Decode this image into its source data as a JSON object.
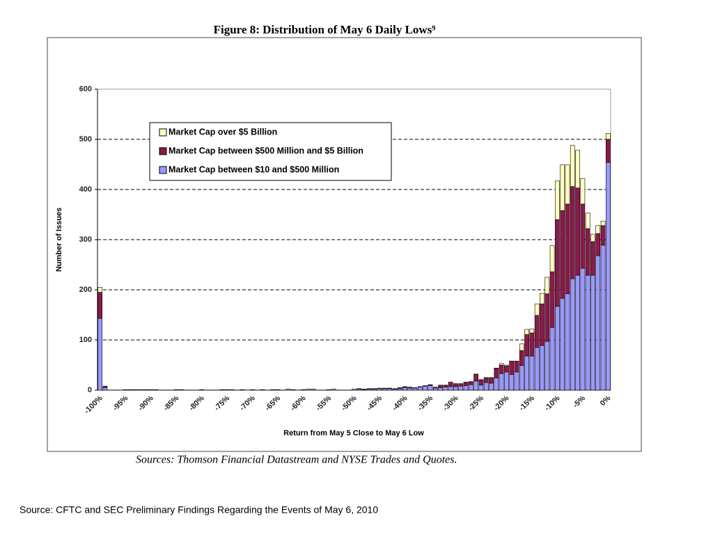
{
  "chart_data": {
    "type": "stacked_bar",
    "title": "Figure 8:  Distribution of May 6 Daily Lows⁹",
    "x_label": "Return from May 5 Close to May 6 Low",
    "y_label": "Number of Issues",
    "sources": "Sources: Thomson Financial Datastream and NYSE Trades and Quotes.",
    "categories": [
      "-100%",
      null,
      null,
      null,
      null,
      "-95%",
      null,
      null,
      null,
      null,
      "-90%",
      null,
      null,
      null,
      null,
      "-85%",
      null,
      null,
      null,
      null,
      "-80%",
      null,
      null,
      null,
      null,
      "-75%",
      null,
      null,
      null,
      null,
      "-70%",
      null,
      null,
      null,
      null,
      "-65%",
      null,
      null,
      null,
      null,
      "-60%",
      null,
      null,
      null,
      null,
      "-55%",
      null,
      null,
      null,
      null,
      "-50%",
      null,
      null,
      null,
      null,
      "-45%",
      null,
      null,
      null,
      null,
      "-40%",
      null,
      null,
      null,
      null,
      "-35%",
      null,
      null,
      null,
      null,
      "-30%",
      null,
      null,
      null,
      null,
      "-25%",
      null,
      null,
      null,
      null,
      "-20%",
      null,
      null,
      null,
      null,
      "-15%",
      null,
      null,
      null,
      null,
      "-10%",
      null,
      null,
      null,
      null,
      "-5%",
      null,
      null,
      null,
      null,
      "0%"
    ],
    "series": [
      {
        "name": "Market Cap between $10 and $500 Million",
        "color": "#9999ff",
        "values": [
          143,
          5,
          0,
          0,
          0,
          1,
          1,
          1,
          1,
          1,
          1,
          1,
          0,
          0,
          0,
          1,
          1,
          0,
          0,
          0,
          1,
          0,
          0,
          0,
          1,
          1,
          1,
          0,
          1,
          0,
          1,
          0,
          1,
          0,
          1,
          1,
          0,
          2,
          1,
          0,
          1,
          2,
          2,
          0,
          0,
          1,
          2,
          0,
          0,
          0,
          2,
          2,
          1,
          2,
          2,
          3,
          3,
          3,
          2,
          3,
          5,
          4,
          4,
          6,
          8,
          9,
          4,
          5,
          6,
          7,
          7,
          8,
          9,
          11,
          18,
          10,
          15,
          14,
          24,
          33,
          36,
          31,
          36,
          49,
          68,
          68,
          85,
          89,
          97,
          125,
          167,
          183,
          192,
          222,
          229,
          243,
          229,
          229,
          268,
          289,
          454
        ]
      },
      {
        "name": "Market Cap between $500 Million and $5 Billion",
        "color": "#8b1a4a",
        "values": [
          52,
          3,
          0,
          0,
          0,
          0,
          0,
          0,
          0,
          0,
          0,
          0,
          0,
          0,
          0,
          0,
          0,
          0,
          0,
          0,
          0,
          0,
          0,
          0,
          0,
          0,
          0,
          0,
          0,
          0,
          0,
          0,
          0,
          0,
          0,
          0,
          0,
          0,
          0,
          0,
          0,
          0,
          0,
          0,
          0,
          0,
          0,
          0,
          0,
          0,
          0,
          1,
          1,
          1,
          1,
          1,
          1,
          1,
          1,
          2,
          2,
          2,
          1,
          1,
          1,
          2,
          2,
          5,
          4,
          9,
          6,
          5,
          6,
          5,
          13,
          10,
          9,
          10,
          19,
          17,
          12,
          27,
          22,
          30,
          43,
          46,
          64,
          83,
          95,
          111,
          173,
          175,
          179,
          184,
          174,
          128,
          93,
          67,
          44,
          39,
          46
        ]
      },
      {
        "name": "Market Cap over $5 Billion",
        "color": "#ffffc0",
        "values": [
          10,
          0,
          0,
          0,
          0,
          0,
          0,
          0,
          0,
          0,
          0,
          0,
          0,
          0,
          0,
          0,
          0,
          0,
          0,
          0,
          0,
          0,
          0,
          0,
          0,
          0,
          0,
          0,
          0,
          0,
          0,
          0,
          0,
          0,
          0,
          0,
          0,
          0,
          0,
          0,
          0,
          0,
          0,
          0,
          0,
          0,
          0,
          0,
          0,
          0,
          0,
          0,
          0,
          0,
          0,
          0,
          0,
          0,
          0,
          0,
          0,
          0,
          0,
          0,
          0,
          0,
          0,
          0,
          0,
          0,
          0,
          0,
          1,
          1,
          1,
          1,
          1,
          1,
          1,
          3,
          2,
          0,
          0,
          13,
          10,
          8,
          23,
          21,
          33,
          52,
          77,
          91,
          78,
          82,
          75,
          51,
          31,
          15,
          16,
          9,
          12
        ]
      }
    ],
    "ylim": [
      0,
      600
    ],
    "yticks": [
      0,
      100,
      200,
      300,
      400,
      500,
      600
    ],
    "grid": true
  },
  "footer": "Source: CFTC and SEC Preliminary Findings Regarding the Events of May 6, 2010"
}
